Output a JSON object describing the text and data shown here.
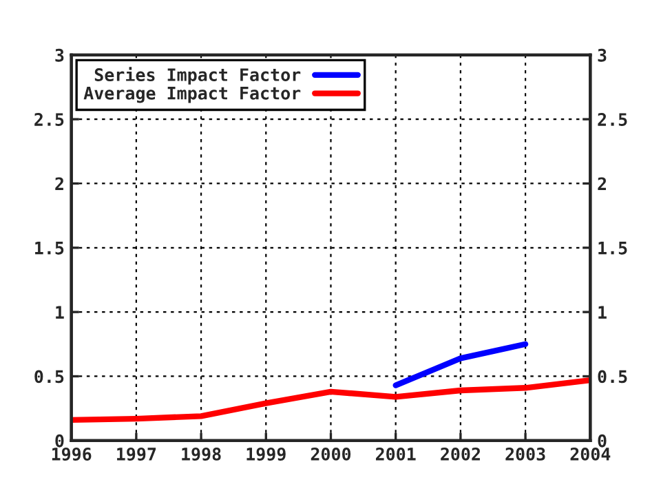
{
  "chart_data": {
    "type": "line",
    "x": [
      1996,
      1997,
      1998,
      1999,
      2000,
      2001,
      2002,
      2003,
      2004
    ],
    "series": [
      {
        "name": "Series Impact Factor",
        "color": "#0000ff",
        "values": [
          null,
          null,
          null,
          null,
          null,
          0.43,
          0.64,
          0.75,
          null
        ]
      },
      {
        "name": "Average Impact Factor",
        "color": "#ff0000",
        "values": [
          0.16,
          0.17,
          0.19,
          0.29,
          0.38,
          0.34,
          0.39,
          0.41,
          0.47
        ]
      }
    ],
    "xlim": [
      1996,
      2004
    ],
    "xticks": [
      1996,
      1997,
      1998,
      1999,
      2000,
      2001,
      2002,
      2003,
      2004
    ],
    "ylim": [
      0,
      3
    ],
    "yticks": [
      0,
      0.5,
      1,
      1.5,
      2,
      2.5,
      3
    ],
    "y2lim": [
      0,
      3
    ],
    "y2ticks": [
      0,
      0.5,
      1,
      1.5,
      2,
      2.5,
      3
    ],
    "grid": true,
    "legend": "top left",
    "line_style": "solid",
    "marker": "none"
  }
}
